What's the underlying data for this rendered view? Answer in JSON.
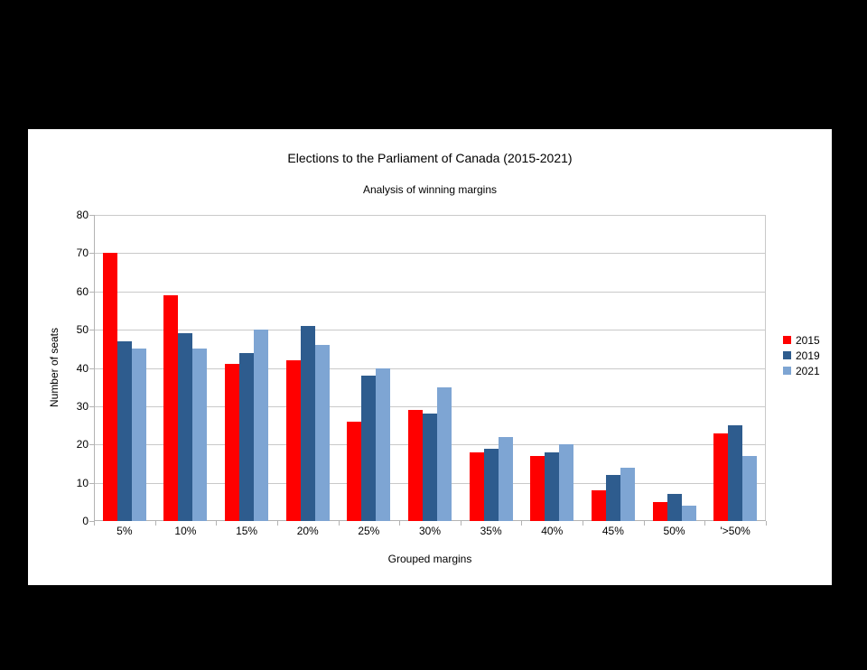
{
  "colors": {
    "page_background": "#000000",
    "canvas_background": "#ffffff",
    "gridline": "#c9c9c9",
    "axis": "#b3b3b3",
    "text": "#000000"
  },
  "chart_data": {
    "type": "bar",
    "title": "Elections to the Parliament of Canada (2015-2021)",
    "subtitle": "Analysis of winning margins",
    "xlabel": "Grouped margins",
    "ylabel": "Number of seats",
    "categories": [
      "5%",
      "10%",
      "15%",
      "20%",
      "25%",
      "30%",
      "35%",
      "40%",
      "45%",
      "50%",
      "'>50%"
    ],
    "series": [
      {
        "name": "2015",
        "color": "#ff0000",
        "values": [
          70,
          59,
          41,
          42,
          26,
          29,
          18,
          17,
          8,
          5,
          23
        ]
      },
      {
        "name": "2019",
        "color": "#2e5c8e",
        "values": [
          47,
          49,
          44,
          51,
          38,
          28,
          19,
          18,
          12,
          7,
          25
        ]
      },
      {
        "name": "2021",
        "color": "#7ea5d3",
        "values": [
          45,
          45,
          50,
          46,
          40,
          35,
          22,
          20,
          14,
          4,
          17
        ]
      }
    ],
    "ylim": [
      0,
      80
    ],
    "ytick_step": 10,
    "grid": true,
    "legend_position": "right"
  }
}
